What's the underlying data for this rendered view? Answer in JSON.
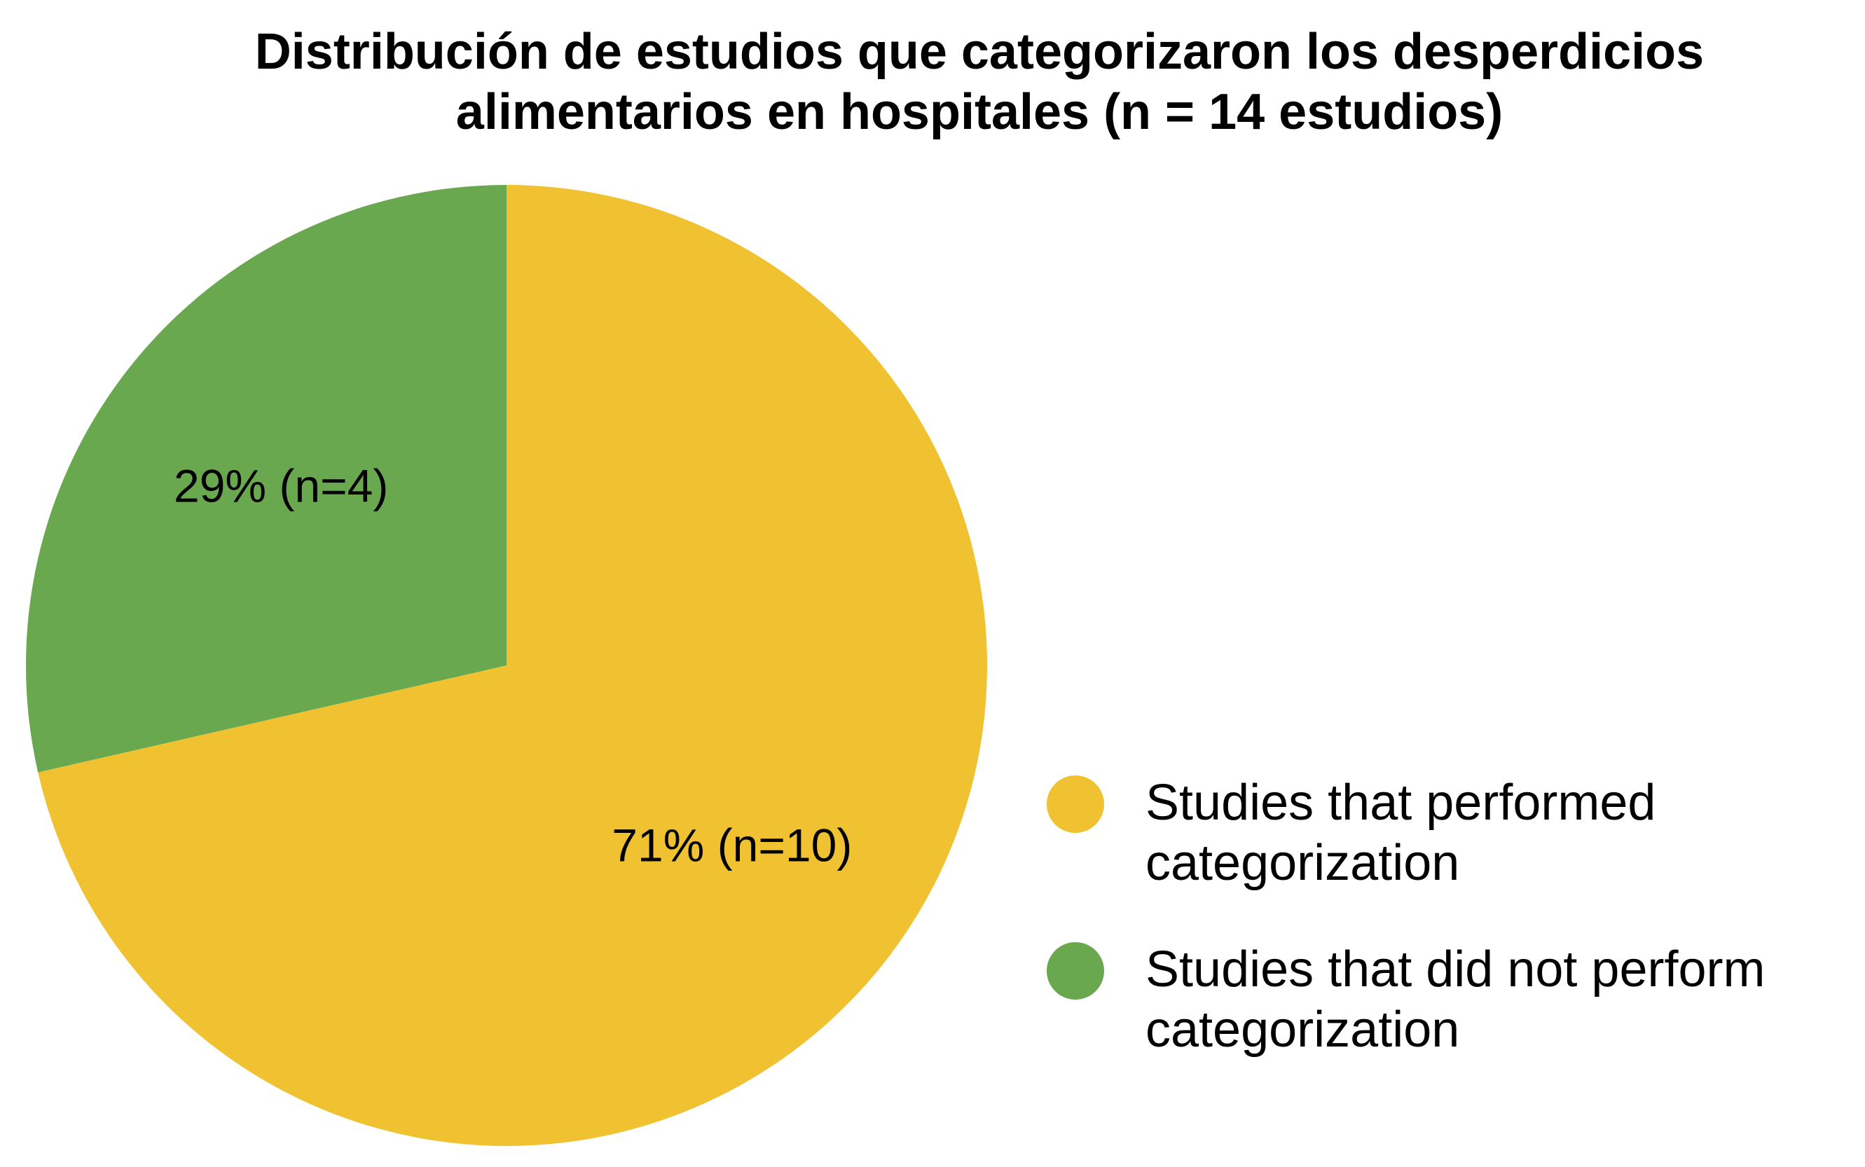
{
  "chart_data": {
    "type": "pie",
    "title": [
      "Distribución de estudios que categorizaron los desperdicios",
      "alimentarios en hospitales (n = 14 estudios)"
    ],
    "slices": [
      {
        "label_lines": [
          "Studies that performed",
          "categorization"
        ],
        "value": 10,
        "percent_label": "71% (n=10)",
        "color": "#F0C231"
      },
      {
        "label_lines": [
          "Studies that did not perform",
          "categorization"
        ],
        "value": 4,
        "percent_label": "29% (n=4)",
        "color": "#6AA84F"
      }
    ],
    "legend_position": "right"
  }
}
